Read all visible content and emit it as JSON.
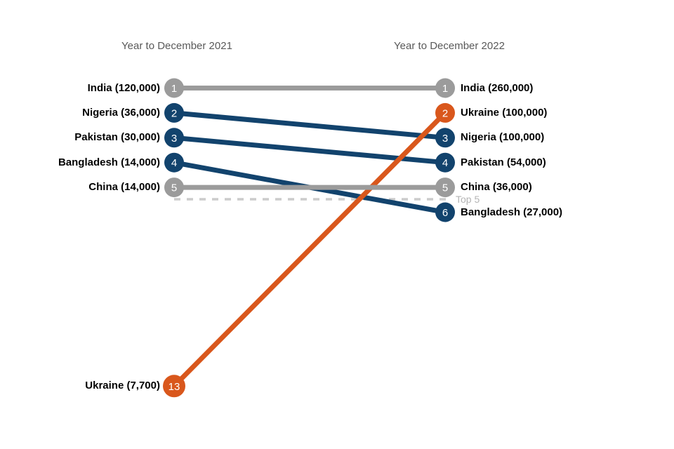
{
  "chart_data": {
    "type": "slope",
    "columns": [
      {
        "label": "Year to December 2021"
      },
      {
        "label": "Year to December 2022"
      }
    ],
    "threshold": {
      "label": "Top 5",
      "between_ranks": [
        5,
        6
      ]
    },
    "series": [
      {
        "name": "India",
        "color": "gray",
        "start": {
          "rank": 1,
          "value": 120000,
          "label": "India (120,000)"
        },
        "end": {
          "rank": 1,
          "value": 260000,
          "label": "India (260,000)"
        }
      },
      {
        "name": "Nigeria",
        "color": "blue",
        "start": {
          "rank": 2,
          "value": 36000,
          "label": "Nigeria (36,000)"
        },
        "end": {
          "rank": 3,
          "value": 100000,
          "label": "Nigeria (100,000)"
        }
      },
      {
        "name": "Pakistan",
        "color": "blue",
        "start": {
          "rank": 3,
          "value": 30000,
          "label": "Pakistan (30,000)"
        },
        "end": {
          "rank": 4,
          "value": 54000,
          "label": "Pakistan (54,000)"
        }
      },
      {
        "name": "Bangladesh",
        "color": "blue",
        "start": {
          "rank": 4,
          "value": 14000,
          "label": "Bangladesh (14,000)"
        },
        "end": {
          "rank": 6,
          "value": 27000,
          "label": "Bangladesh (27,000)"
        }
      },
      {
        "name": "China",
        "color": "gray",
        "start": {
          "rank": 5,
          "value": 14000,
          "label": "China (14,000)"
        },
        "end": {
          "rank": 5,
          "value": 36000,
          "label": "China (36,000)"
        }
      },
      {
        "name": "Ukraine",
        "color": "orange",
        "start": {
          "rank": 13,
          "value": 7700,
          "label": "Ukraine (7,700)"
        },
        "end": {
          "rank": 2,
          "value": 100000,
          "label": "Ukraine (100,000)"
        }
      }
    ],
    "colors": {
      "gray": "#9b9b9b",
      "blue": "#12436d",
      "orange": "#d9571c",
      "threshold_line": "#cccccc",
      "threshold_label": "#b4b4b4",
      "column_header": "#595959",
      "series_label": "#000000",
      "rank_number": "#ffffff"
    }
  }
}
